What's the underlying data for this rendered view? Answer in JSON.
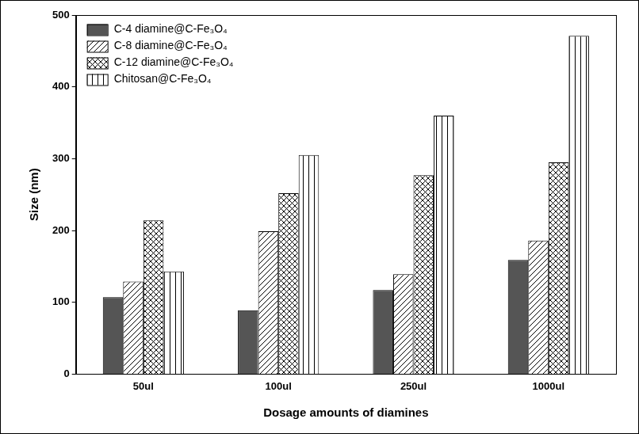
{
  "chart_data": {
    "type": "bar",
    "x_label": "Dosage amounts of diamines",
    "y_label": "Size (nm)",
    "categories": [
      "50ul",
      "100ul",
      "250ul",
      "1000ul"
    ],
    "series": [
      {
        "name": "C-4 diamine@C-Fe₃O₄",
        "color": "#555555",
        "values": [
          107,
          89,
          117,
          159
        ]
      },
      {
        "name": "C-8 diamine@C-Fe₃O₄",
        "color": "#000000",
        "values": [
          129,
          199,
          139,
          186
        ]
      },
      {
        "name": "C-12 diamine@C-Fe₃O₄",
        "color": "#000000",
        "values": [
          214,
          252,
          277,
          295
        ]
      },
      {
        "name": "Chitosan@C-Fe₃O₄",
        "color": "#000000",
        "values": [
          143,
          305,
          360,
          471
        ]
      }
    ],
    "ylim": [
      0,
      500
    ],
    "yticks": [
      0,
      100,
      200,
      300,
      400,
      500
    ],
    "grid": false,
    "legend": "upper left"
  }
}
